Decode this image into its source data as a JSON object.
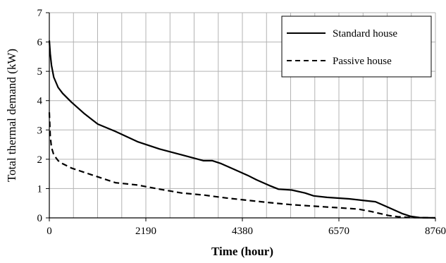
{
  "chart_data": {
    "type": "line",
    "title": "",
    "xlabel": "Time (hour)",
    "ylabel": "Total thermal demand (kW)",
    "xlim": [
      0,
      8760
    ],
    "ylim": [
      0,
      7
    ],
    "x_ticks": [
      0,
      2190,
      4380,
      6570,
      8760
    ],
    "x_tick_labels": [
      "0",
      "2190",
      "4380",
      "6570",
      "8760"
    ],
    "x_minor_gridlines": [
      548,
      1095,
      1643,
      2738,
      3285,
      3833,
      4928,
      5475,
      6023,
      7118,
      7665,
      8213
    ],
    "y_ticks": [
      0,
      1,
      2,
      3,
      4,
      5,
      6,
      7
    ],
    "y_tick_labels": [
      "0",
      "1",
      "2",
      "3",
      "4",
      "5",
      "6",
      "7"
    ],
    "grid": true,
    "legend_position": "top-right",
    "series": [
      {
        "name": "Standard house",
        "style": "solid",
        "color": "#000000",
        "x": [
          0,
          20,
          50,
          100,
          200,
          300,
          500,
          800,
          1100,
          1500,
          2000,
          2500,
          3000,
          3500,
          3700,
          3900,
          4200,
          4500,
          4700,
          5000,
          5200,
          5500,
          5800,
          6000,
          6300,
          6800,
          7100,
          7400,
          7700,
          8000,
          8200,
          8400,
          8760
        ],
        "y": [
          6.05,
          5.6,
          5.2,
          4.8,
          4.45,
          4.25,
          3.95,
          3.55,
          3.2,
          2.95,
          2.6,
          2.35,
          2.15,
          1.95,
          1.95,
          1.85,
          1.65,
          1.45,
          1.3,
          1.1,
          0.98,
          0.95,
          0.85,
          0.75,
          0.7,
          0.65,
          0.6,
          0.55,
          0.35,
          0.15,
          0.05,
          0.01,
          0.0
        ]
      },
      {
        "name": "Passive house",
        "style": "dashed",
        "color": "#000000",
        "x": [
          0,
          20,
          50,
          100,
          200,
          300,
          500,
          800,
          1100,
          1500,
          2000,
          2500,
          3000,
          3500,
          4000,
          4500,
          5000,
          5500,
          6000,
          6500,
          7000,
          7300,
          7500,
          7700,
          7900,
          8100,
          8300,
          8760
        ],
        "y": [
          3.6,
          2.8,
          2.4,
          2.15,
          1.95,
          1.85,
          1.7,
          1.55,
          1.4,
          1.2,
          1.12,
          0.98,
          0.85,
          0.78,
          0.68,
          0.6,
          0.52,
          0.45,
          0.4,
          0.35,
          0.3,
          0.22,
          0.15,
          0.08,
          0.04,
          0.02,
          0.01,
          0.0
        ]
      }
    ]
  },
  "colors": {
    "grid": "#b3b3b3",
    "axis": "#000000",
    "background": "#ffffff"
  }
}
